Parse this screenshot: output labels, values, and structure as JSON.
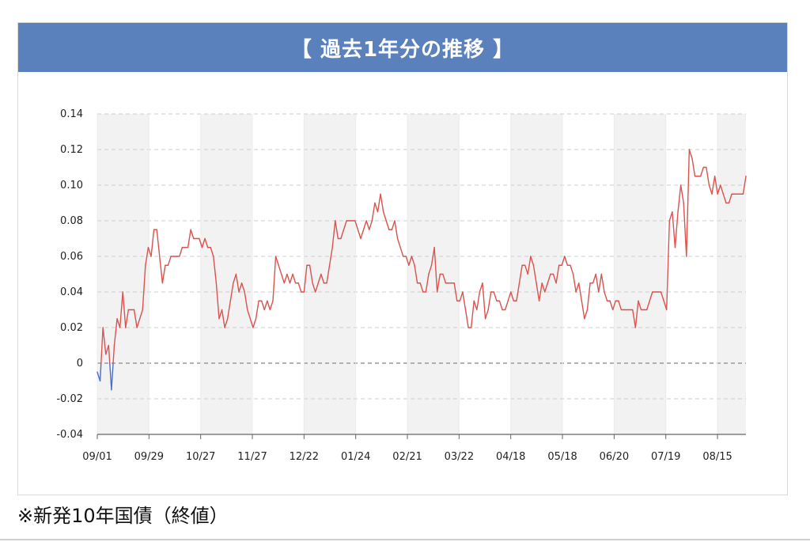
{
  "header": {
    "title": "【 過去1年分の推移 】"
  },
  "footnote": "※新発10年国債（終値）",
  "colors": {
    "header_bg": "#5a81bb",
    "line_positive": "#d9534f",
    "line_negative": "#4a6fc4",
    "band": "#f2f2f2",
    "grid": "#cccccc"
  },
  "chart_data": {
    "type": "line",
    "title": "",
    "xlabel": "",
    "ylabel": "",
    "ylim": [
      -0.04,
      0.14
    ],
    "y_ticks": [
      "0.14",
      "0.12",
      "0.10",
      "0.08",
      "0.06",
      "0.04",
      "0.02",
      "0",
      "-0.02",
      "-0.04"
    ],
    "x_tick_labels": [
      "09/01",
      "09/29",
      "10/27",
      "11/27",
      "12/22",
      "01/24",
      "02/21",
      "03/22",
      "04/18",
      "05/18",
      "06/20",
      "07/19",
      "08/15"
    ],
    "grid": true,
    "zero_line": "dashed",
    "series": [
      {
        "values": [
          -0.005,
          -0.01,
          0.02,
          0.005,
          0.01,
          -0.015,
          0.01,
          0.025,
          0.02,
          0.04,
          0.02,
          0.03,
          0.03,
          0.03,
          0.02,
          0.025,
          0.03,
          0.055,
          0.065,
          0.06,
          0.075,
          0.075,
          0.06,
          0.045,
          0.055,
          0.055,
          0.06,
          0.06,
          0.06,
          0.06,
          0.065,
          0.065,
          0.065,
          0.075,
          0.07,
          0.07,
          0.07,
          0.065,
          0.07,
          0.065,
          0.065,
          0.06,
          0.045,
          0.025,
          0.03,
          0.02,
          0.025,
          0.035,
          0.045,
          0.05,
          0.04,
          0.045,
          0.04,
          0.03,
          0.025,
          0.02,
          0.025,
          0.035,
          0.035,
          0.03,
          0.035,
          0.03,
          0.035,
          0.06,
          0.055,
          0.05,
          0.045,
          0.05,
          0.045,
          0.05,
          0.045,
          0.045,
          0.04,
          0.04,
          0.055,
          0.055,
          0.045,
          0.04,
          0.045,
          0.05,
          0.045,
          0.045,
          0.055,
          0.065,
          0.08,
          0.07,
          0.07,
          0.075,
          0.08,
          0.08,
          0.08,
          0.08,
          0.075,
          0.07,
          0.075,
          0.08,
          0.075,
          0.08,
          0.09,
          0.085,
          0.095,
          0.085,
          0.08,
          0.075,
          0.075,
          0.08,
          0.07,
          0.065,
          0.06,
          0.06,
          0.055,
          0.06,
          0.055,
          0.045,
          0.045,
          0.04,
          0.04,
          0.05,
          0.055,
          0.065,
          0.04,
          0.05,
          0.05,
          0.045,
          0.045,
          0.045,
          0.045,
          0.035,
          0.035,
          0.04,
          0.03,
          0.02,
          0.02,
          0.035,
          0.03,
          0.04,
          0.045,
          0.025,
          0.03,
          0.04,
          0.04,
          0.035,
          0.035,
          0.03,
          0.03,
          0.035,
          0.04,
          0.035,
          0.035,
          0.045,
          0.055,
          0.055,
          0.05,
          0.06,
          0.055,
          0.045,
          0.035,
          0.045,
          0.04,
          0.045,
          0.05,
          0.05,
          0.045,
          0.055,
          0.055,
          0.06,
          0.055,
          0.055,
          0.05,
          0.04,
          0.045,
          0.035,
          0.025,
          0.03,
          0.045,
          0.045,
          0.05,
          0.04,
          0.05,
          0.04,
          0.035,
          0.035,
          0.03,
          0.035,
          0.035,
          0.03,
          0.03,
          0.03,
          0.03,
          0.03,
          0.02,
          0.035,
          0.03,
          0.03,
          0.03,
          0.035,
          0.04,
          0.04,
          0.04,
          0.04,
          0.035,
          0.03,
          0.08,
          0.085,
          0.065,
          0.085,
          0.1,
          0.09,
          0.06,
          0.12,
          0.115,
          0.105,
          0.105,
          0.105,
          0.11,
          0.11,
          0.1,
          0.095,
          0.105,
          0.095,
          0.1,
          0.095,
          0.09,
          0.09,
          0.095,
          0.095,
          0.095,
          0.095,
          0.095,
          0.105
        ]
      }
    ]
  }
}
